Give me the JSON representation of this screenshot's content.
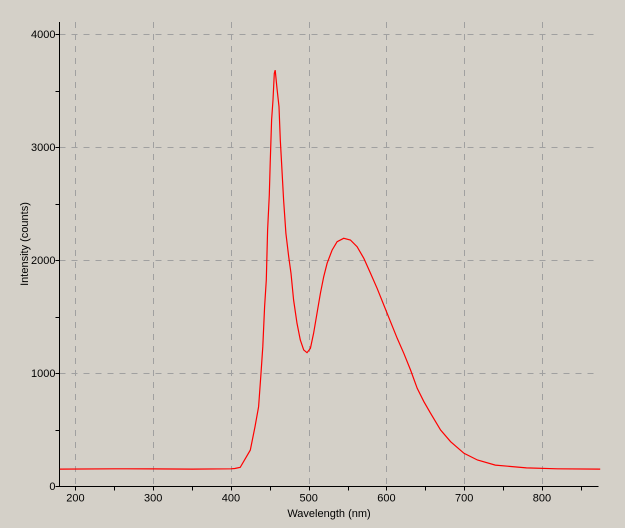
{
  "chart_data": {
    "type": "line",
    "title": "",
    "xlabel": "Wavelength (nm)",
    "ylabel": "Intensity (counts)",
    "xlim": [
      180,
      875
    ],
    "ylim": [
      0,
      4100
    ],
    "x_ticks": [
      200,
      300,
      400,
      500,
      600,
      700,
      800
    ],
    "y_ticks": [
      0,
      1000,
      2000,
      3000,
      4000
    ],
    "grid": true,
    "grid_style": "dashed",
    "legend": "none",
    "colors": {
      "series": "#ff0000",
      "grid": "#a0a0a0",
      "background": "#d4d0c8",
      "axis": "#000000"
    },
    "series": [
      {
        "x": [
          180,
          250,
          300,
          350,
          400,
          405,
          412,
          425,
          431,
          435.6,
          438.7,
          441,
          443.3,
          445.5,
          447.2,
          449.4,
          450.6,
          452.3,
          454.1,
          455.8,
          457,
          459.3,
          461.9,
          463.5,
          465.2,
          467.8,
          470.8,
          474.3,
          477.3,
          480.7,
          485,
          489.3,
          493.6,
          497.9,
          502.2,
          506.4,
          510.8,
          515.1,
          519.3,
          523.7,
          530.1,
          536.6,
          545.1,
          553.7,
          562.3,
          570.9,
          579.5,
          588.1,
          596.7,
          605.3,
          613.9,
          622.4,
          631,
          639.6,
          648.2,
          656.8,
          669.7,
          682.6,
          699.8,
          717,
          740,
          780,
          820,
          875
        ],
        "y": [
          150,
          152,
          151,
          150,
          152,
          155,
          165,
          318,
          525,
          702,
          997,
          1233,
          1587,
          1823,
          2265,
          2575,
          2856,
          3239,
          3416,
          3652,
          3680,
          3519,
          3357,
          3062,
          2856,
          2531,
          2236,
          2029,
          1882,
          1646,
          1440,
          1292,
          1204,
          1180,
          1218,
          1351,
          1528,
          1705,
          1852,
          1971,
          2088,
          2162,
          2192,
          2177,
          2118,
          2015,
          1882,
          1750,
          1602,
          1454,
          1307,
          1174,
          1027,
          865,
          746,
          643,
          496,
          392,
          289,
          230,
          185,
          160,
          152,
          150
        ]
      }
    ]
  }
}
